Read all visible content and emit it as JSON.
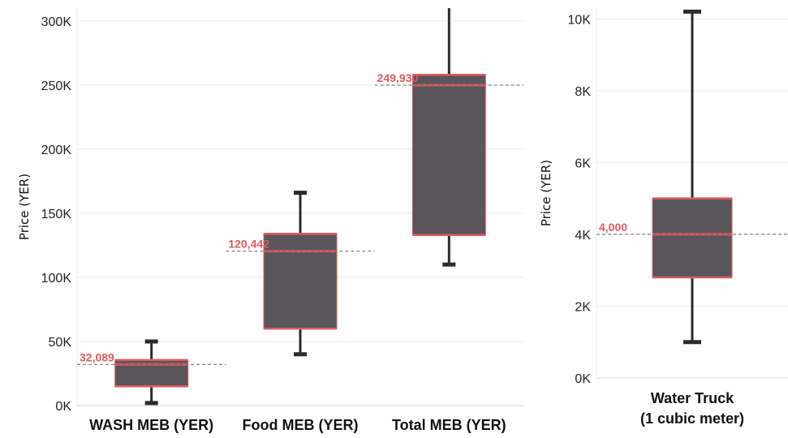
{
  "chart_data": [
    {
      "type": "boxplot",
      "ylabel": "Price (YER)",
      "ylim": [
        0,
        310000
      ],
      "yticks": [
        {
          "value": 0,
          "label": "0K"
        },
        {
          "value": 50000,
          "label": "50K"
        },
        {
          "value": 100000,
          "label": "100K"
        },
        {
          "value": 150000,
          "label": "150K"
        },
        {
          "value": 200000,
          "label": "200K"
        },
        {
          "value": 250000,
          "label": "250K"
        },
        {
          "value": 300000,
          "label": "300K"
        }
      ],
      "categories": [
        "WASH MEB (YER)",
        "Food MEB (YER)",
        "Total MEB (YER)"
      ],
      "boxes": [
        {
          "category": "WASH MEB (YER)",
          "whisker_low": 2000,
          "q1": 15000,
          "median": 32089,
          "q3": 35500,
          "whisker_high": 50000,
          "reference": 32089,
          "reference_label": "32,089"
        },
        {
          "category": "Food MEB (YER)",
          "whisker_low": 40000,
          "q1": 60000,
          "median": 120442,
          "q3": 134000,
          "whisker_high": 166000,
          "reference": 120442,
          "reference_label": "120,442"
        },
        {
          "category": "Total MEB (YER)",
          "whisker_low": 110000,
          "q1": 133000,
          "median": 249930,
          "q3": 258000,
          "whisker_high": 310000,
          "reference": 249930,
          "reference_label": "249,930"
        }
      ],
      "grid": true,
      "colors": {
        "box": "#58565a",
        "median": "#e05a5f",
        "whisker": "#2b2b2b",
        "reference_line": "#666666",
        "annotation": "#e05a5f"
      }
    },
    {
      "type": "boxplot",
      "ylabel": "Price (YER)",
      "ylim": [
        0,
        10300
      ],
      "yticks": [
        {
          "value": 0,
          "label": "0K"
        },
        {
          "value": 2000,
          "label": "2K"
        },
        {
          "value": 4000,
          "label": "4K"
        },
        {
          "value": 6000,
          "label": "6K"
        },
        {
          "value": 8000,
          "label": "8K"
        },
        {
          "value": 10000,
          "label": "10K"
        }
      ],
      "categories": [
        "Water Truck\n(1 cubic meter)"
      ],
      "category_lines": [
        "Water Truck",
        "(1 cubic meter)"
      ],
      "boxes": [
        {
          "category": "Water Truck (1 cubic meter)",
          "whisker_low": 1000,
          "q1": 2800,
          "median": 4000,
          "q3": 5000,
          "whisker_high": 10200,
          "reference": 4000,
          "reference_label": "4,000"
        }
      ],
      "grid": true,
      "colors": {
        "box": "#58565a",
        "median": "#e05a5f",
        "whisker": "#2b2b2b",
        "reference_line": "#666666",
        "annotation": "#e05a5f"
      }
    }
  ]
}
